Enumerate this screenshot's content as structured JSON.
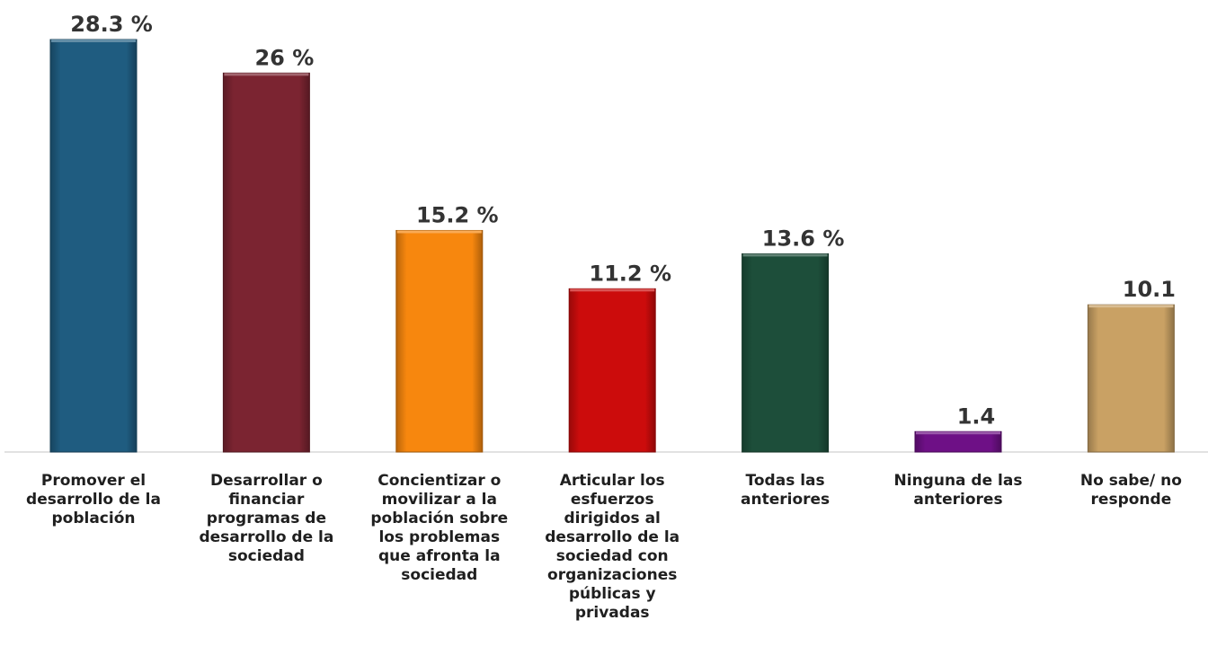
{
  "chart_data": {
    "type": "bar",
    "categories": [
      [
        "Promover el",
        "desarrollo de la",
        "población"
      ],
      [
        "Desarrollar o",
        "financiar",
        "programas de",
        "desarrollo de la",
        "sociedad"
      ],
      [
        "Concientizar o",
        "movilizar a la",
        "población sobre",
        "los problemas",
        "que afronta la",
        "sociedad"
      ],
      [
        "Articular los",
        "esfuerzos",
        "dirigidos al",
        "desarrollo de la",
        "sociedad con",
        "organizaciones",
        "públicas y",
        "privadas"
      ],
      [
        "Todas las",
        "anteriores"
      ],
      [
        "Ninguna de las",
        "anteriores"
      ],
      [
        "No sabe/ no",
        "responde"
      ]
    ],
    "values": [
      28.3,
      26,
      15.2,
      11.2,
      13.6,
      1.4,
      10.1
    ],
    "value_labels": [
      "28.3 %",
      "26 %",
      "15.2 %",
      "11.2 %",
      "13.6 %",
      "1.4",
      "10.1"
    ],
    "colors": [
      "#1f5c80",
      "#7b2431",
      "#f7870e",
      "#cc0c0c",
      "#1d4e3a",
      "#6e1086",
      "#c9a164"
    ],
    "title": "",
    "xlabel": "",
    "ylabel": "",
    "ylim": [
      0,
      28.3
    ],
    "grid": false,
    "legend": "none"
  }
}
